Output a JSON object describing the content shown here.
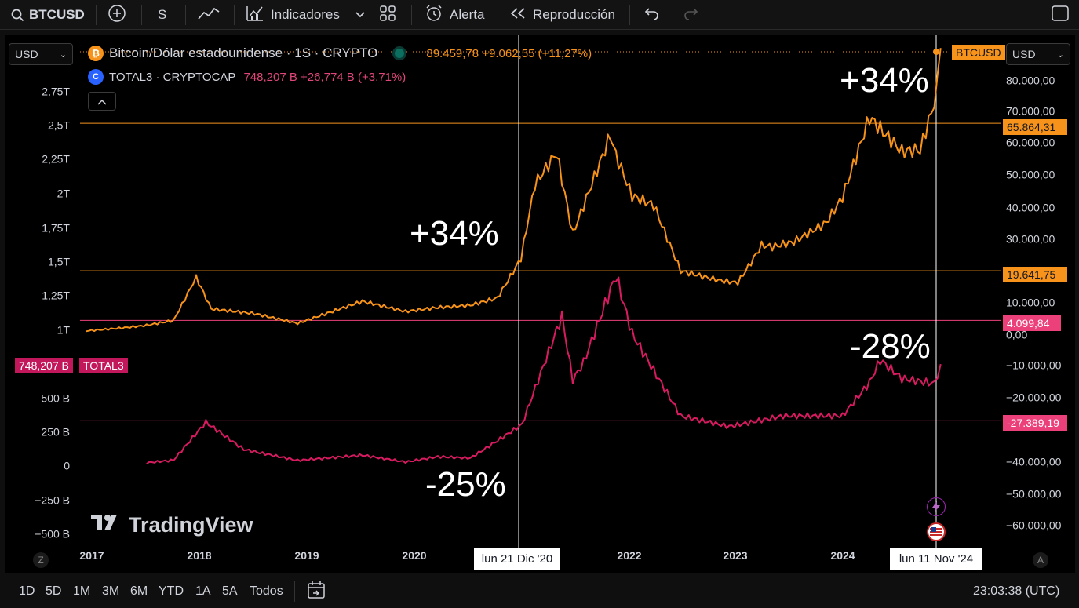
{
  "toolbar": {
    "symbol": "BTCUSD",
    "interval": "S",
    "indicators_label": "Indicadores",
    "alert_label": "Alerta",
    "replay_label": "Reproducción"
  },
  "currency_left": "USD",
  "currency_right": "USD",
  "legend": {
    "btc_title": "Bitcoin/Dólar estadounidense · 1S · CRYPTO",
    "btc_stats": "89.459,78 +9.062,55 (+11,27%)",
    "total3_title": "TOTAL3 · CRYPTOCAP",
    "total3_stats": "748,207 B +26,774 B (+3,71%)"
  },
  "annotations": [
    "+34%",
    "+34%",
    "-25%",
    "-28%"
  ],
  "price_tags": {
    "btc_symbol": "BTCUSD",
    "level_65864": "65.864,31",
    "level_19641": "19.641,75",
    "level_4099": "4.099,84",
    "level_27389": "-27.389,19",
    "total3_value": "748,207 B",
    "total3_symbol": "TOTAL3"
  },
  "crosshair_labels": [
    "lun 21 Dic '20",
    "lun 11 Nov '24"
  ],
  "brand": "TradingView",
  "bottom": {
    "timeframes": [
      "1D",
      "5D",
      "1M",
      "3M",
      "6M",
      "YTD",
      "1A",
      "5A",
      "Todos"
    ],
    "clock": "23:03:38 (UTC)"
  },
  "colors": {
    "btc": "#f7931a",
    "total3": "#c2185b",
    "total3_line": "#d81b60",
    "pink_level": "#ec407a",
    "background": "#000000"
  },
  "chart_data": {
    "type": "line",
    "x_axis": {
      "ticks": [
        "2017",
        "2018",
        "2019",
        "2020",
        "2022",
        "2023",
        "2024"
      ]
    },
    "left_axis": {
      "ticks": [
        "2,75T",
        "2,5T",
        "2,25T",
        "2T",
        "1,75T",
        "1,5T",
        "1,25T",
        "1T",
        "500 B",
        "250 B",
        "0",
        "−250 B",
        "−500 B"
      ]
    },
    "right_axis": {
      "ticks": [
        "80.000,00",
        "70.000,00",
        "60.000,00",
        "50.000,00",
        "40.000,00",
        "30.000,00",
        "10.000,00",
        "0,00",
        "−10.000,00",
        "−20.000,00",
        "−40.000,00",
        "−50.000,00",
        "−60.000,00"
      ]
    },
    "horizontal_levels": [
      {
        "value": 65864.31,
        "color": "#f7931a"
      },
      {
        "value": 19641.75,
        "color": "#f7931a"
      },
      {
        "value": 4099.84,
        "color": "#ec407a"
      },
      {
        "value": -27389.19,
        "color": "#ec407a"
      }
    ],
    "series": [
      {
        "name": "BTCUSD",
        "color": "#f7931a",
        "x": [
          2016.94,
          2017.5,
          2017.75,
          2017.96,
          2018.1,
          2018.5,
          2018.9,
          2019.5,
          2019.9,
          2020.2,
          2020.5,
          2020.75,
          2020.97,
          2021.1,
          2021.3,
          2021.45,
          2021.55,
          2021.8,
          2021.85,
          2022.0,
          2022.2,
          2022.45,
          2022.8,
          2022.98,
          2023.2,
          2023.3,
          2023.5,
          2023.8,
          2023.95,
          2024.2,
          2024.5,
          2024.67,
          2024.8,
          2024.86
        ],
        "values": [
          800,
          2700,
          4300,
          17000,
          8000,
          6500,
          3400,
          10500,
          7200,
          8500,
          9200,
          11500,
          23500,
          48000,
          58000,
          32000,
          41000,
          63500,
          57000,
          44000,
          41000,
          20000,
          17000,
          16500,
          28000,
          27500,
          29000,
          35000,
          43000,
          68000,
          57000,
          56000,
          72000,
          89459.78
        ]
      },
      {
        "name": "TOTAL3",
        "color": "#d81b60",
        "x": [
          2017.5,
          2017.75,
          2018.05,
          2018.4,
          2018.9,
          2019.5,
          2019.9,
          2020.2,
          2020.5,
          2020.98,
          2021.35,
          2021.45,
          2021.55,
          2021.85,
          2022.0,
          2022.45,
          2022.9,
          2023.4,
          2023.95,
          2024.2,
          2024.3,
          2024.5,
          2024.8,
          2024.86
        ],
        "values": [
          20,
          40,
          320,
          120,
          40,
          80,
          30,
          70,
          60,
          300,
          1130,
          650,
          780,
          1440,
          1000,
          380,
          300,
          380,
          380,
          630,
          800,
          660,
          620,
          748.207
        ]
      }
    ]
  }
}
